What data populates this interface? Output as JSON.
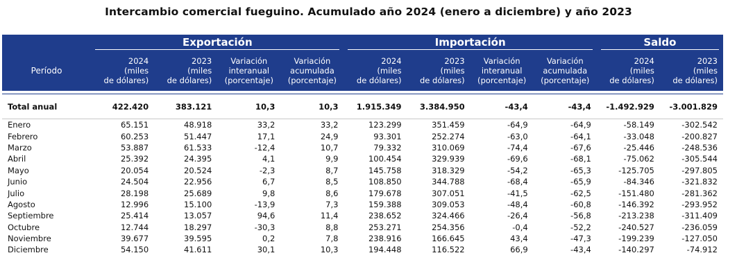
{
  "title": "Intercambio comercial fueguino. Acumulado año 2024 (enero a diciembre) y año 2023",
  "groups": {
    "export": "Exportación",
    "import": "Importación",
    "saldo": "Saldo"
  },
  "headers": {
    "period": "Período",
    "y2024": [
      "2024",
      "(miles",
      "de dólares)"
    ],
    "y2023": [
      "2023",
      "(miles",
      "de dólares)"
    ],
    "var_inter": [
      "Variación",
      "interanual",
      "(porcentaje)"
    ],
    "var_acum": [
      "Variación",
      "acumulada",
      "(porcentaje)"
    ]
  },
  "total": [
    "Total anual",
    "422.420",
    "383.121",
    "10,3",
    "10,3",
    "1.915.349",
    "3.384.950",
    "-43,4",
    "-43,4",
    "-1.492.929",
    "-3.001.829"
  ],
  "rows": [
    [
      "Enero",
      "65.151",
      "48.918",
      "33,2",
      "33,2",
      "123.299",
      "351.459",
      "-64,9",
      "-64,9",
      "-58.149",
      "-302.542"
    ],
    [
      "Febrero",
      "60.253",
      "51.447",
      "17,1",
      "24,9",
      "93.301",
      "252.274",
      "-63,0",
      "-64,1",
      "-33.048",
      "-200.827"
    ],
    [
      "Marzo",
      "53.887",
      "61.533",
      "-12,4",
      "10,7",
      "79.332",
      "310.069",
      "-74,4",
      "-67,6",
      "-25.446",
      "-248.536"
    ],
    [
      "Abril",
      "25.392",
      "24.395",
      "4,1",
      "9,9",
      "100.454",
      "329.939",
      "-69,6",
      "-68,1",
      "-75.062",
      "-305.544"
    ],
    [
      "Mayo",
      "20.054",
      "20.524",
      "-2,3",
      "8,7",
      "145.758",
      "318.329",
      "-54,2",
      "-65,3",
      "-125.705",
      "-297.805"
    ],
    [
      "Junio",
      "24.504",
      "22.956",
      "6,7",
      "8,5",
      "108.850",
      "344.788",
      "-68,4",
      "-65,9",
      "-84.346",
      "-321.832"
    ],
    [
      "Julio",
      "28.198",
      "25.689",
      "9,8",
      "8,6",
      "179.678",
      "307.051",
      "-41,5",
      "-62,5",
      "-151.480",
      "-281.362"
    ],
    [
      "Agosto",
      "12.996",
      "15.100",
      "-13,9",
      "7,3",
      "159.388",
      "309.053",
      "-48,4",
      "-60,8",
      "-146.392",
      "-293.952"
    ],
    [
      "Septiembre",
      "25.414",
      "13.057",
      "94,6",
      "11,4",
      "238.652",
      "324.466",
      "-26,4",
      "-56,8",
      "-213.238",
      "-311.409"
    ],
    [
      "Octubre",
      "12.744",
      "18.297",
      "-30,3",
      "8,8",
      "253.271",
      "254.356",
      "-0,4",
      "-52,2",
      "-240.527",
      "-236.059"
    ],
    [
      "Noviembre",
      "39.677",
      "39.595",
      "0,2",
      "7,8",
      "238.916",
      "166.645",
      "43,4",
      "-47,3",
      "-199.239",
      "-127.050"
    ],
    [
      "Diciembre",
      "54.150",
      "41.611",
      "30,1",
      "10,3",
      "194.448",
      "116.522",
      "66,9",
      "-43,4",
      "-140.297",
      "-74.912"
    ]
  ],
  "colors": {
    "header_bg": "#1f3d8c",
    "header_text": "#ffffff"
  }
}
